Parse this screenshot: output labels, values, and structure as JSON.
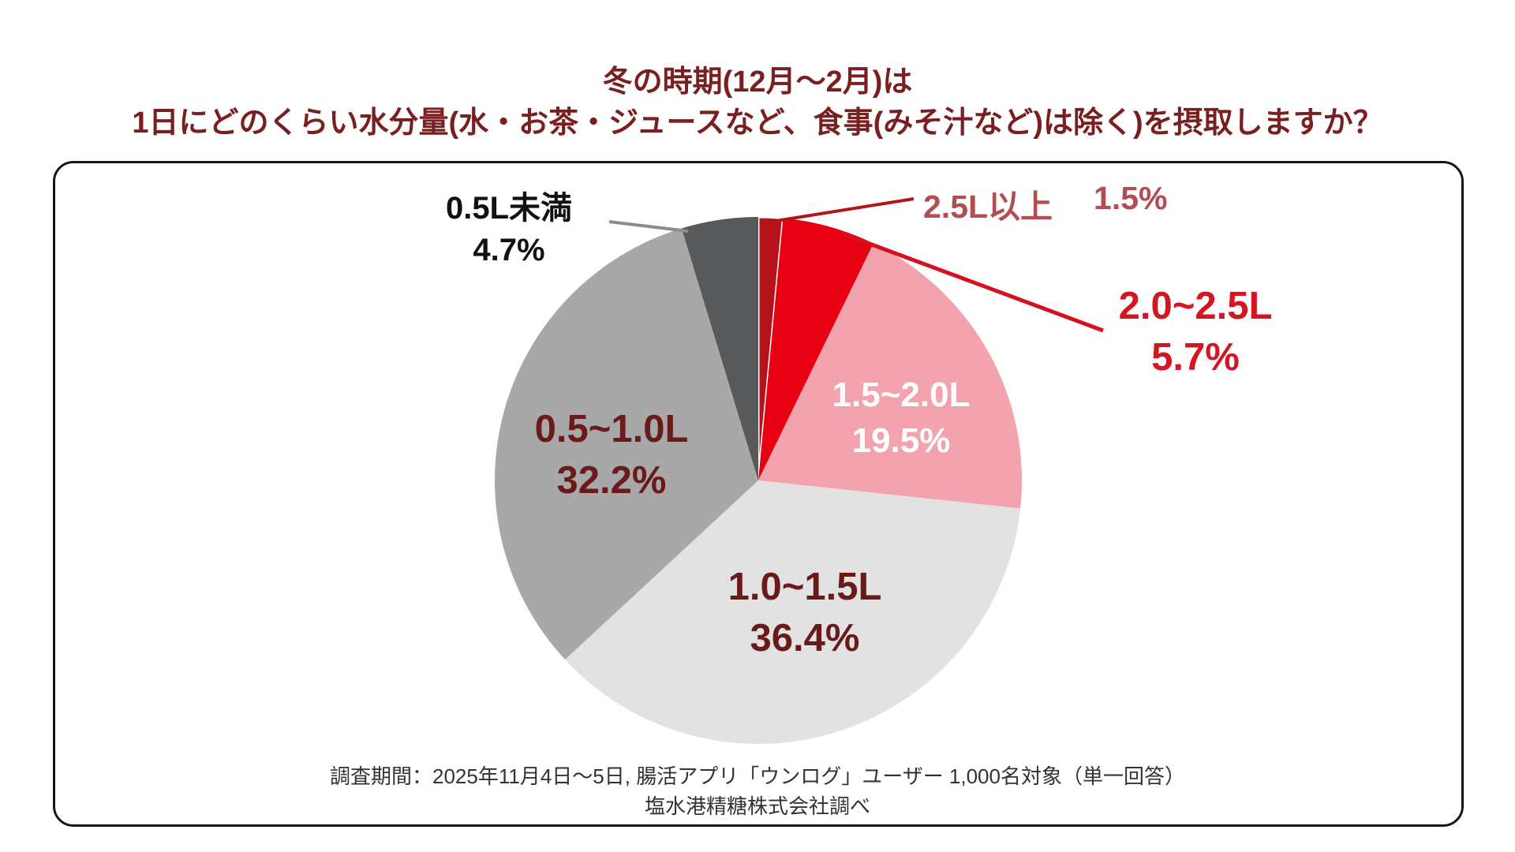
{
  "title": {
    "line1": "冬の時期(12月〜2月)は",
    "line2": "1日にどのくらい水分量(水・お茶・ジュースなど、食事(みそ汁など)は除く)を摂取しますか？"
  },
  "chart_data": {
    "type": "pie",
    "title": "冬の時期(12月〜2月)は1日にどのくらい水分量(水・お茶・ジュースなど、食事(みそ汁など)は除く)を摂取しますか？",
    "start_angle_deg": -90,
    "direction": "clockwise",
    "unit": "%",
    "slices": [
      {
        "label": "2.5L以上",
        "value": 1.5,
        "pct_label": "1.5%",
        "color": "#b5121b"
      },
      {
        "label": "2.0~2.5L",
        "value": 5.7,
        "pct_label": "5.7%",
        "color": "#e60012"
      },
      {
        "label": "1.5~2.0L",
        "value": 19.5,
        "pct_label": "19.5%",
        "color": "#f2a3ad"
      },
      {
        "label": "1.0~1.5L",
        "value": 36.4,
        "pct_label": "36.4%",
        "color": "#e2e2e2"
      },
      {
        "label": "0.5~1.0L",
        "value": 32.2,
        "pct_label": "32.2%",
        "color": "#a8a8a8"
      },
      {
        "label": "0.5L未満",
        "value": 4.7,
        "pct_label": "4.7%",
        "color": "#58595b"
      }
    ]
  },
  "footer": {
    "line1": "調査期間：2025年11月4日〜5日, 腸活アプリ「ウンログ」ユーザー 1,000名対象（単一回答）",
    "line2": "塩水港精糖株式会社調べ"
  }
}
